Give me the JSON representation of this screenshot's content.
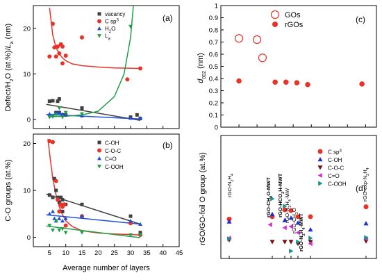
{
  "chart_data": [
    {
      "panel": "(a)",
      "type": "scatter",
      "xlim": [
        0,
        45
      ],
      "ylim": [
        -2,
        25
      ],
      "yticks": [
        0,
        10,
        20
      ],
      "ylabel": "Defect/H2O (at.%)/La (nm)",
      "series": [
        {
          "name": "vacancy",
          "color": "#404040",
          "marker": "square",
          "x": [
            5,
            6,
            7,
            7.5,
            8,
            8,
            9,
            9,
            10,
            15,
            30,
            32,
            33
          ],
          "y": [
            4,
            4.1,
            1.5,
            4,
            1.5,
            4.5,
            1,
            1,
            1,
            2.5,
            0.5,
            1,
            0.2
          ],
          "fit": {
            "x": [
              4,
              33
            ],
            "y": [
              3.3,
              -0.2
            ]
          }
        },
        {
          "name": "C sp3",
          "color": "#e8332a",
          "marker": "circle",
          "x": [
            5,
            6,
            6.5,
            7,
            7.5,
            8,
            8.5,
            9,
            9,
            10,
            15,
            29,
            33
          ],
          "y": [
            13.8,
            21,
            15.8,
            13.8,
            16,
            14.5,
            16.5,
            16,
            12.3,
            14,
            18,
            8.8,
            11.2
          ],
          "fit": {
            "x": [
              5,
              6,
              7,
              8,
              9,
              10,
              12,
              15,
              20,
              25,
              33
            ],
            "y": [
              24.5,
              18.5,
              15.8,
              14.4,
              13.5,
              12.9,
              12.2,
              11.8,
              11.5,
              11.3,
              11.2
            ]
          }
        },
        {
          "name": "H2O",
          "color": "#1f4fd8",
          "marker": "triangle",
          "x": [
            5,
            6,
            7,
            8,
            9,
            10,
            15,
            30,
            33
          ],
          "y": [
            1.2,
            0.9,
            1.5,
            1.5,
            1.1,
            1.1,
            0.8,
            0.3,
            0.3
          ],
          "fit": {
            "x": [
              4,
              33
            ],
            "y": [
              1.1,
              0.1
            ]
          }
        },
        {
          "name": "La",
          "color": "#1f9f45",
          "marker": "triangle-down",
          "x": [
            5,
            6,
            7,
            8,
            9,
            10,
            15,
            30
          ],
          "y": [
            0.5,
            0.6,
            1,
            2.5,
            0.5,
            1.5,
            1.2,
            20.4
          ],
          "fit": {
            "x": [
              5,
              10,
              15,
              20,
              25,
              28,
              30,
              31.5
            ],
            "y": [
              0.6,
              0.7,
              1.0,
              1.8,
              5.0,
              10.0,
              18.0,
              30.0
            ]
          }
        }
      ]
    },
    {
      "panel": "(b)",
      "type": "scatter",
      "xlim": [
        0,
        45
      ],
      "ylim": [
        -2,
        22
      ],
      "xticks": [
        5,
        10,
        15,
        20,
        25,
        30,
        35,
        40,
        45
      ],
      "yticks": [
        0,
        10,
        20
      ],
      "xlabel": "Average number of layers",
      "ylabel": "C-O groups (at.%)",
      "series": [
        {
          "name": "C-OH",
          "color": "#404040",
          "marker": "square",
          "x": [
            5,
            6,
            6.5,
            7,
            7.5,
            8,
            8.5,
            9,
            9,
            10,
            15,
            30,
            33
          ],
          "y": [
            9,
            8.5,
            12.5,
            10,
            8.5,
            7.5,
            8.5,
            8,
            5.5,
            7,
            7,
            4.5,
            1
          ],
          "fit": {
            "x": [
              4,
              33
            ],
            "y": [
              9.2,
              2.8
            ]
          }
        },
        {
          "name": "C-O-C",
          "color": "#e8332a",
          "marker": "circle",
          "x": [
            5,
            6,
            7,
            7.5,
            8,
            8.5,
            9,
            9.5,
            10,
            15,
            30,
            33
          ],
          "y": [
            20.5,
            20.3,
            12,
            8,
            5.5,
            7,
            6.5,
            7,
            2.5,
            4.5,
            3,
            0.5
          ],
          "fit": {
            "x": [
              4.5,
              5,
              6,
              7,
              8,
              9,
              10,
              12,
              15,
              20,
              25,
              33
            ],
            "y": [
              21,
              18,
              12.5,
              9,
              6.5,
              4.8,
              3.5,
              2.3,
              1.4,
              0.9,
              0.7,
              0.5
            ]
          }
        },
        {
          "name": "C=O",
          "color": "#1f4fd8",
          "marker": "triangle",
          "x": [
            5,
            6,
            6.5,
            7,
            8,
            9,
            10,
            15,
            30,
            33
          ],
          "y": [
            5,
            5.5,
            4,
            3.5,
            4,
            3.5,
            4,
            4.5,
            3.5,
            2.8
          ],
          "fit": {
            "x": [
              4,
              33
            ],
            "y": [
              4.8,
              2.8
            ]
          }
        },
        {
          "name": "C-OOH",
          "color": "#1f9f45",
          "marker": "triangle-down",
          "x": [
            5,
            6,
            7,
            8,
            9,
            10,
            15,
            30,
            33
          ],
          "y": [
            2.5,
            1.5,
            3.5,
            1.5,
            1.8,
            1,
            1,
            0.5,
            0.5
          ],
          "fit": {
            "x": [
              4,
              33
            ],
            "y": [
              2.4,
              -0.1
            ]
          }
        }
      ]
    },
    {
      "panel": "(c)",
      "type": "scatter",
      "ylim": [
        0,
        1
      ],
      "yticks": [
        0,
        0.1,
        0.2,
        0.3,
        0.4,
        0.5,
        0.6,
        0.7,
        0.8,
        0.9,
        1.0
      ],
      "ytick_labels": [
        "0",
        "0.1",
        "0.2",
        "0.3",
        "0.4",
        "0.5",
        "0.6",
        "0.7",
        "0.8",
        "0.9",
        "1"
      ],
      "ylabel": "d002 (nm)",
      "series": [
        {
          "name": "GOs",
          "color": "#e8332a",
          "marker": "open-circle",
          "x": [
            1,
            2,
            2.3
          ],
          "y": [
            0.73,
            0.72,
            0.57
          ]
        },
        {
          "name": "rGOs",
          "color": "#e8332a",
          "marker": "circle",
          "x": [
            1,
            3,
            3.6,
            4.2,
            4.8,
            7.8
          ],
          "y": [
            0.38,
            0.37,
            0.37,
            0.365,
            0.35,
            0.355
          ]
        }
      ]
    },
    {
      "panel": "(d)",
      "type": "scatter",
      "ylim": [
        0,
        2
      ],
      "ylabel": "rGO/GO-foil O group (at.%)",
      "categories": [
        "rGO-N2H4",
        "rGO-CH2O-MWT",
        "rGO-HCO2H-MWT",
        "rGO-N2H4-MW",
        "rGO-CH2O",
        "rGO-N2H4-MWT",
        "rGO-exp-N2H4"
      ],
      "series": [
        {
          "name": "C sp3",
          "color": "#e8332a",
          "marker": "circle",
          "values": [
            0.64,
            0.68,
            0.79,
            0.78,
            0.68,
            0.68,
            0.84
          ]
        },
        {
          "name": "C-OH",
          "color": "#1f2fc8",
          "marker": "triangle",
          "values": [
            0.6,
            0.72,
            0.62,
            0.66,
            0.58,
            0.47,
            0.57
          ]
        },
        {
          "name": "C-O-C",
          "color": "#7a1010",
          "marker": "triangle-down",
          "values": [
            0.3,
            0.27,
            0.27,
            0.27,
            0.24,
            0.27,
            0.28
          ]
        },
        {
          "name": "C=O",
          "color": "#d633d6",
          "marker": "triangle-left",
          "values": [
            0.33,
            0.55,
            0.5,
            0.52,
            0.42,
            0.24,
            0.32
          ]
        },
        {
          "name": "C-OOH",
          "color": "#1a8f8f",
          "marker": "triangle-right",
          "values": [
            0.32,
            0.97,
            0.85,
            0.12,
            0.27,
            0.33,
            0.34
          ]
        }
      ]
    }
  ]
}
